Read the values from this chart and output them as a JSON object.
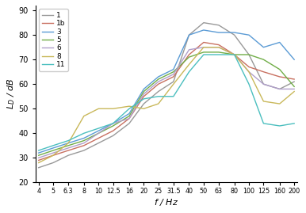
{
  "freqs": [
    4,
    5,
    6.3,
    8,
    10,
    12.5,
    16,
    20,
    25,
    31.5,
    40,
    50,
    63,
    80,
    100,
    125,
    160,
    200
  ],
  "series": {
    "1": [
      26,
      28,
      31,
      33,
      36,
      39,
      44,
      52,
      57,
      61,
      80,
      85,
      84,
      80,
      72,
      60,
      58,
      61
    ],
    "1b": [
      29,
      31,
      33,
      35,
      38,
      41,
      46,
      55,
      60,
      63,
      72,
      77,
      76,
      72,
      67,
      65,
      63,
      62
    ],
    "3": [
      32,
      34,
      36,
      38,
      41,
      44,
      48,
      58,
      63,
      66,
      80,
      82,
      81,
      81,
      80,
      75,
      77,
      70
    ],
    "5": [
      31,
      33,
      35,
      37,
      40,
      43,
      47,
      57,
      62,
      65,
      71,
      73,
      73,
      72,
      72,
      70,
      66,
      59
    ],
    "6": [
      30,
      32,
      34,
      36,
      40,
      44,
      46,
      56,
      61,
      64,
      74,
      75,
      75,
      72,
      65,
      60,
      58,
      58
    ],
    "8": [
      28,
      31,
      36,
      47,
      50,
      50,
      51,
      50,
      52,
      60,
      68,
      75,
      75,
      72,
      65,
      53,
      52,
      57
    ],
    "11": [
      33,
      35,
      37,
      40,
      42,
      44,
      50,
      54,
      55,
      55,
      65,
      72,
      72,
      72,
      60,
      44,
      43,
      44
    ]
  },
  "colors": {
    "1": "#999999",
    "1b": "#c87060",
    "3": "#5b9bd5",
    "5": "#70ad47",
    "6": "#b09fca",
    "8": "#c9b85a",
    "11": "#4bbfbf"
  },
  "xlabel": "$f$ / Hz",
  "ylabel": "$L_D$ / dB",
  "ylim": [
    20,
    92
  ],
  "yticks": [
    20,
    30,
    40,
    50,
    60,
    70,
    80,
    90
  ],
  "legend_labels": [
    "1",
    "1b",
    "3",
    "5",
    "6",
    "8",
    "11"
  ],
  "background": "#ffffff"
}
